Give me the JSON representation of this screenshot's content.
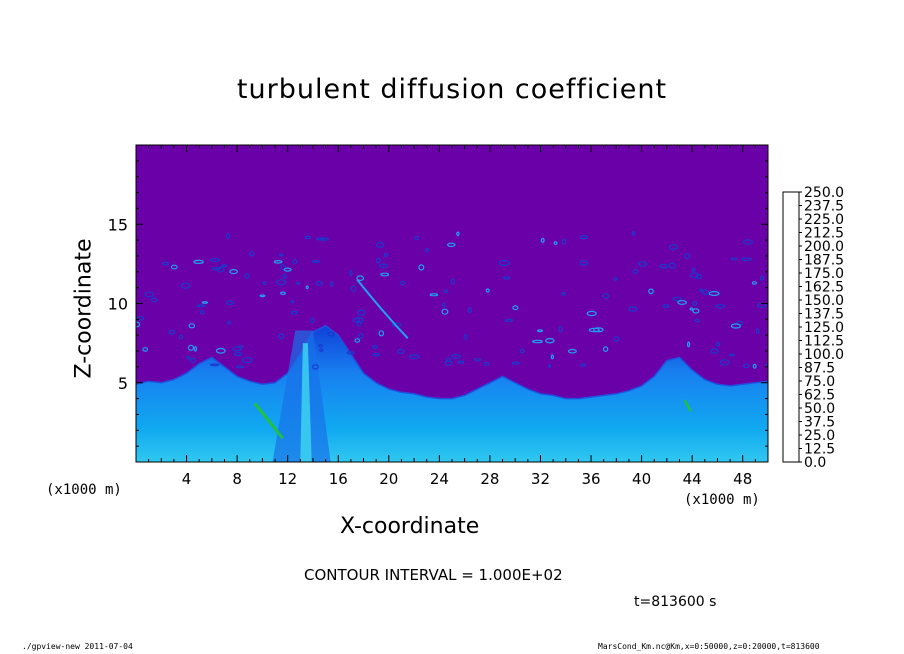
{
  "chart_data": {
    "type": "heatmap",
    "title": "turbulent diffusion coefficient",
    "xlabel": "X-coordinate",
    "ylabel": "Z-coordinate",
    "x_unit_label": "(x1000 m)",
    "y_unit_label": "(x1000 m)",
    "xlim": [
      0,
      50
    ],
    "ylim": [
      0,
      20
    ],
    "x_ticks": [
      4,
      8,
      12,
      16,
      20,
      24,
      28,
      32,
      36,
      40,
      44,
      48
    ],
    "y_ticks": [
      5,
      10,
      15
    ],
    "colorbar": {
      "levels": [
        "0.0",
        "12.5",
        "25.0",
        "37.5",
        "50.0",
        "62.5",
        "75.0",
        "87.5",
        "100.0",
        "112.5",
        "125.0",
        "137.5",
        "150.0",
        "162.5",
        "175.0",
        "187.5",
        "200.0",
        "212.5",
        "225.0",
        "237.5",
        "250.0"
      ],
      "colors": [
        "#6a00a8",
        "#2a10b0",
        "#1030d0",
        "#1060e8",
        "#1890f0",
        "#10b8f0",
        "#10d8e8",
        "#20e8c0",
        "#10d070",
        "#20b840",
        "#30c020",
        "#60d010",
        "#a0e000",
        "#d0e000",
        "#ffd800",
        "#ffb000",
        "#ff8000",
        "#ff5000",
        "#ff2000",
        "#ff7070"
      ]
    },
    "background_color": "#6a00a8",
    "boundary_layer_top_km": [
      4.9,
      5.1,
      5.0,
      5.2,
      5.6,
      6.2,
      6.6,
      6.0,
      5.4,
      5.1,
      4.9,
      5.0,
      5.6,
      6.8,
      8.2,
      8.6,
      8.0,
      6.8,
      5.6,
      5.0,
      4.6,
      4.4,
      4.3,
      4.1,
      4.0,
      4.0,
      4.2,
      4.6,
      5.0,
      5.4,
      5.0,
      4.6,
      4.3,
      4.2,
      4.0,
      4.0,
      4.1,
      4.2,
      4.3,
      4.5,
      4.8,
      5.4,
      6.4,
      6.6,
      5.8,
      5.2,
      4.9,
      4.8,
      4.9,
      5.0,
      5.1
    ]
  },
  "contour_interval": "CONTOUR INTERVAL = 1.000E+02",
  "time_label": "t=813600 s",
  "footer_left": "./gpview-new  2011-07-04",
  "footer_right": "MarsCond_Km.nc@Km,x=0:50000,z=0:20000,t=813600"
}
